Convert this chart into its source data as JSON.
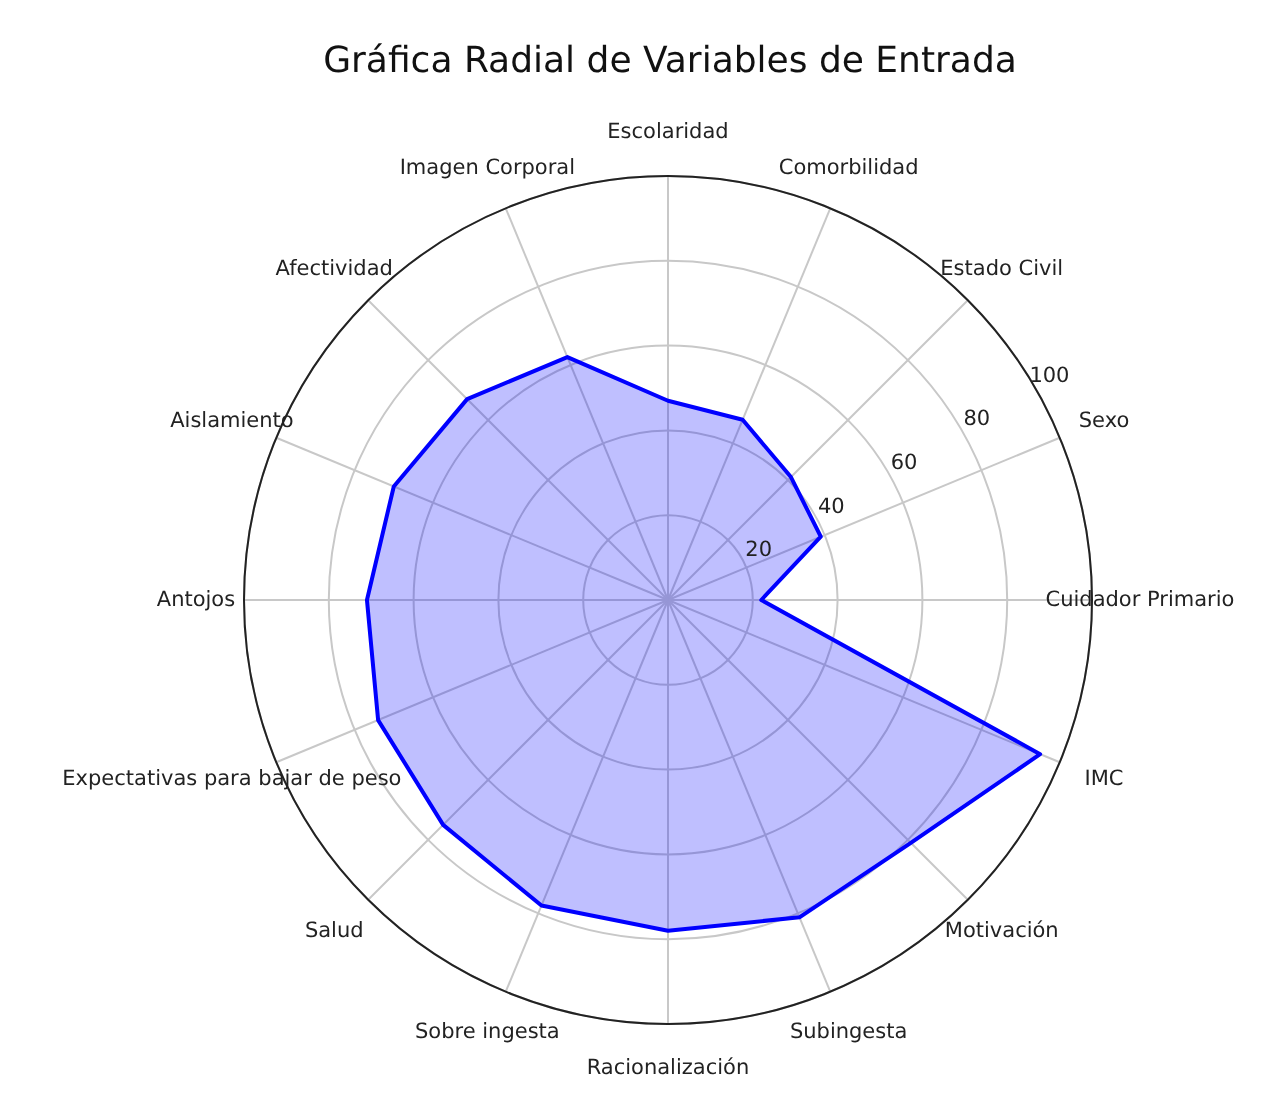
{
  "chart_data": {
    "type": "radar",
    "title": "Gráfica Radial de Variables de Entrada",
    "categories": [
      "Escolaridad",
      "Comorbilidad",
      "Estado Civil",
      "Sexo",
      "Cuidador Primario",
      "IMC",
      "Motivación",
      "Subingesta",
      "Racionalización",
      "Sobre ingesta",
      "Salud",
      "Expectativas para bajar de peso",
      "Antojos",
      "Aislamiento",
      "Afectividad",
      "Imagen Corporal"
    ],
    "series": [
      {
        "color": "#0000ff",
        "values": [
          47,
          46,
          41,
          39,
          22,
          95,
          81,
          81,
          78,
          78,
          75,
          74,
          71,
          70,
          67,
          62
        ]
      }
    ],
    "ylim": [
      0,
      100
    ],
    "yticks": [
      20,
      40,
      60,
      80,
      100
    ],
    "grid": true
  }
}
